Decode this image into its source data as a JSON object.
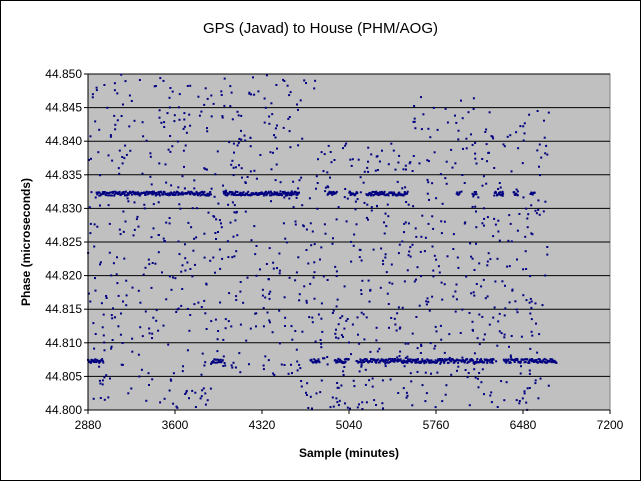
{
  "chart_data": {
    "type": "scatter",
    "title": "GPS (Javad) to House (PHM/AOG)",
    "xlabel": "Sample (minutes)",
    "ylabel": "Phase (microseconds)",
    "xlim": [
      2880,
      7200
    ],
    "ylim": [
      44.8,
      44.85
    ],
    "xticks": [
      2880,
      3600,
      4320,
      5040,
      5760,
      6480,
      7200
    ],
    "xtick_labels": [
      "2880",
      "3600",
      "4320",
      "5040",
      "5760",
      "6480",
      "7200"
    ],
    "yticks": [
      44.8,
      44.805,
      44.81,
      44.815,
      44.82,
      44.825,
      44.83,
      44.835,
      44.84,
      44.845,
      44.85
    ],
    "ytick_labels": [
      "44.800",
      "44.805",
      "44.810",
      "44.815",
      "44.820",
      "44.825",
      "44.830",
      "44.835",
      "44.840",
      "44.845",
      "44.850"
    ],
    "grid": "horizontal",
    "legend": "none",
    "colors": {
      "plot_background": "#c0c0c0",
      "marker": "#000080",
      "gridline": "#000000"
    },
    "series": [
      {
        "marker": "point",
        "clusters": [
          {
            "x_range": [
              2880,
              3010
            ],
            "y": 44.8073
          },
          {
            "x_range": [
              2950,
              3900
            ],
            "y": 44.8322
          },
          {
            "x_range": [
              3900,
              4000
            ],
            "y": 44.8073
          },
          {
            "x_range": [
              4000,
              4630
            ],
            "y": 44.8322
          },
          {
            "x_range": [
              4720,
              4800
            ],
            "y": 44.8073
          },
          {
            "x_range": [
              4860,
              4940
            ],
            "y": 44.8322
          },
          {
            "x_range": [
              4920,
              5040
            ],
            "y": 44.8073
          },
          {
            "x_range": [
              5040,
              5110
            ],
            "y": 44.8322
          },
          {
            "x_range": [
              5110,
              5660
            ],
            "y": 44.8073
          },
          {
            "x_range": [
              5180,
              5530
            ],
            "y": 44.8322
          },
          {
            "x_range": [
              5660,
              6240
            ],
            "y": 44.8073
          },
          {
            "x_range": [
              5930,
              5960
            ],
            "y": 44.8322
          },
          {
            "x_range": [
              6070,
              6100
            ],
            "y": 44.8322
          },
          {
            "x_range": [
              6240,
              6320
            ],
            "y": 44.8322
          },
          {
            "x_range": [
              6320,
              6760
            ],
            "y": 44.8073
          },
          {
            "x_range": [
              6400,
              6440
            ],
            "y": 44.8322
          },
          {
            "x_range": [
              6540,
              6580
            ],
            "y": 44.8322
          }
        ],
        "scatter_bands": [
          {
            "x_range": [
              2880,
              3100
            ],
            "y_range": [
              44.8,
              44.85
            ]
          },
          {
            "x_range": [
              3100,
              3900
            ],
            "y_range": [
              44.8,
              44.85
            ]
          },
          {
            "x_range": [
              3900,
              4620
            ],
            "y_range": [
              44.805,
              44.85
            ]
          },
          {
            "x_range": [
              4620,
              4760
            ],
            "y_range": [
              44.8,
              44.85
            ]
          },
          {
            "x_range": [
              4760,
              5560
            ],
            "y_range": [
              44.8,
              44.84
            ]
          },
          {
            "x_range": [
              5560,
              6100
            ],
            "y_range": [
              44.8,
              44.847
            ]
          },
          {
            "x_range": [
              6100,
              6700
            ],
            "y_range": [
              44.8,
              44.845
            ]
          }
        ]
      }
    ]
  }
}
